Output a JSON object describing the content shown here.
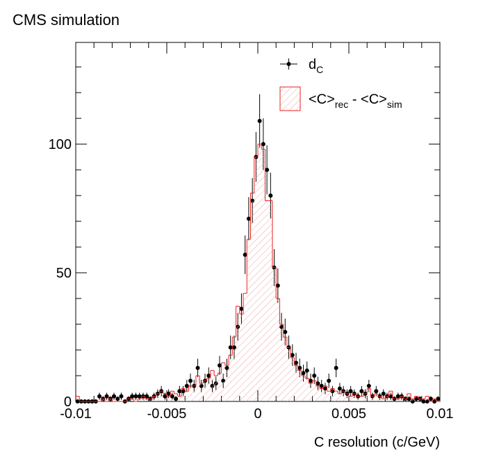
{
  "chart_data": {
    "type": "histogram",
    "title": "CMS simulation",
    "x_label": "C resolution (c/GeV)",
    "xlim": [
      -0.01,
      0.01
    ],
    "ylim": [
      0,
      139.5
    ],
    "xticks": [
      -0.01,
      -0.005,
      0,
      0.005,
      0.01
    ],
    "yticks": [
      0,
      50,
      100
    ],
    "xminorticks": [
      -0.009,
      -0.008,
      -0.007,
      -0.006,
      -0.004,
      -0.003,
      -0.002,
      -0.001,
      0.001,
      0.002,
      0.003,
      0.004,
      0.006,
      0.007,
      0.008,
      0.009
    ],
    "yminorticks": [
      10,
      20,
      30,
      40,
      60,
      70,
      80,
      90,
      110,
      120,
      130
    ],
    "bins": [
      -0.01,
      -0.0098,
      -0.0096,
      -0.0094,
      -0.0092,
      -0.009,
      -0.0088,
      -0.0086,
      -0.0084,
      -0.0082,
      -0.008,
      -0.0078,
      -0.0076,
      -0.0074,
      -0.0072,
      -0.007,
      -0.0068,
      -0.0066,
      -0.0064,
      -0.0062,
      -0.006,
      -0.0058,
      -0.0056,
      -0.0054,
      -0.0052,
      -0.005,
      -0.0048,
      -0.0046,
      -0.0044,
      -0.0042,
      -0.004,
      -0.0038,
      -0.0036,
      -0.0034,
      -0.0032,
      -0.003,
      -0.0028,
      -0.0026,
      -0.0024,
      -0.0022,
      -0.002,
      -0.0018,
      -0.0016,
      -0.0014,
      -0.0012,
      -0.001,
      -0.0008,
      -0.0006,
      -0.0004,
      -0.0002,
      0,
      0.0002,
      0.0004,
      0.0006,
      0.0008,
      0.001,
      0.0012,
      0.0014,
      0.0016,
      0.0018,
      0.002,
      0.0022,
      0.0024,
      0.0026,
      0.0028,
      0.003,
      0.0032,
      0.0034,
      0.0036,
      0.0038,
      0.004,
      0.0042,
      0.0044,
      0.0046,
      0.0048,
      0.005,
      0.0052,
      0.0054,
      0.0056,
      0.0058,
      0.006,
      0.0062,
      0.0064,
      0.0066,
      0.0068,
      0.007,
      0.0072,
      0.0074,
      0.0076,
      0.0078,
      0.008,
      0.0082,
      0.0084,
      0.0086,
      0.0088,
      0.009,
      0.0092,
      0.0094,
      0.0096,
      0.0098,
      0.01
    ],
    "series": [
      {
        "name_parts": [
          {
            "text": "d"
          },
          {
            "text": "C",
            "sub": true
          }
        ],
        "style": "points",
        "color": "#000000",
        "values": [
          0,
          0,
          0,
          0,
          0,
          0,
          2,
          1,
          2,
          1,
          2,
          1,
          2,
          0,
          1,
          2,
          2,
          2,
          2,
          2,
          1,
          2,
          3,
          4,
          2,
          3,
          2,
          1,
          4,
          4,
          6,
          8,
          6,
          13,
          6,
          8,
          10,
          6,
          7,
          14,
          8,
          13,
          21,
          21,
          29,
          36,
          57,
          71,
          78,
          95,
          109,
          100,
          90,
          80,
          52,
          45,
          29,
          27,
          21,
          18,
          15,
          13,
          11,
          12,
          8,
          10,
          7,
          6,
          5,
          8,
          4,
          13,
          5,
          4,
          3,
          4,
          3,
          2,
          4,
          3,
          6,
          2,
          4,
          2,
          3,
          2,
          2,
          1,
          2,
          2,
          1,
          1,
          0,
          1,
          1,
          0,
          0,
          1,
          0,
          1
        ],
        "errors": [
          0,
          0,
          0,
          0,
          0,
          0,
          1.4,
          1,
          1.4,
          1,
          1.4,
          1,
          1.4,
          0,
          1,
          1.4,
          1.4,
          1.4,
          1.4,
          1.4,
          1,
          1.4,
          1.7,
          2,
          1.4,
          1.7,
          1.4,
          1,
          2,
          2,
          2.4,
          2.8,
          2.4,
          3.6,
          2.4,
          2.8,
          3.2,
          2.4,
          2.6,
          3.7,
          2.8,
          3.6,
          4.6,
          4.6,
          5.4,
          6,
          7.5,
          8.4,
          8.8,
          9.7,
          10.4,
          10,
          9.5,
          8.9,
          7.2,
          6.7,
          5.4,
          5.2,
          4.6,
          4.2,
          3.9,
          3.6,
          3.3,
          3.5,
          2.8,
          3.2,
          2.6,
          2.4,
          2.2,
          2.8,
          2,
          3.6,
          2.2,
          2,
          1.7,
          2,
          1.7,
          1.4,
          2,
          1.7,
          2.4,
          1.4,
          2,
          1.4,
          1.7,
          1.4,
          1.4,
          1,
          1.4,
          1.4,
          1,
          1,
          0,
          1,
          1,
          0,
          0,
          1,
          0,
          1
        ]
      },
      {
        "name_parts": [
          {
            "text": "<C>"
          },
          {
            "text": "rec",
            "sub": true
          },
          {
            "text": " - <C>"
          },
          {
            "text": "sim",
            "sub": true
          }
        ],
        "style": "hatched",
        "color": "#e8201c",
        "values": [
          2,
          0,
          0,
          0,
          0,
          0,
          0,
          1,
          0,
          1,
          0,
          0,
          0,
          0,
          1,
          1,
          0,
          1,
          2,
          1,
          1,
          2,
          3,
          4,
          3,
          2,
          4,
          3,
          2,
          5,
          4,
          6,
          6,
          10,
          7,
          8,
          9,
          12,
          10,
          11,
          15,
          14,
          18,
          25,
          37,
          34,
          42,
          63,
          81,
          95,
          100,
          98,
          78,
          78,
          52,
          40,
          30,
          25,
          21,
          17,
          14,
          12,
          10,
          9,
          7,
          8,
          6,
          5,
          6,
          4,
          5,
          4,
          3,
          4,
          3,
          2,
          3,
          2,
          2,
          3,
          5,
          2,
          3,
          2,
          1,
          2,
          4,
          1,
          1,
          2,
          1,
          3,
          1,
          2,
          1,
          1,
          2,
          0,
          1,
          0
        ]
      }
    ]
  }
}
